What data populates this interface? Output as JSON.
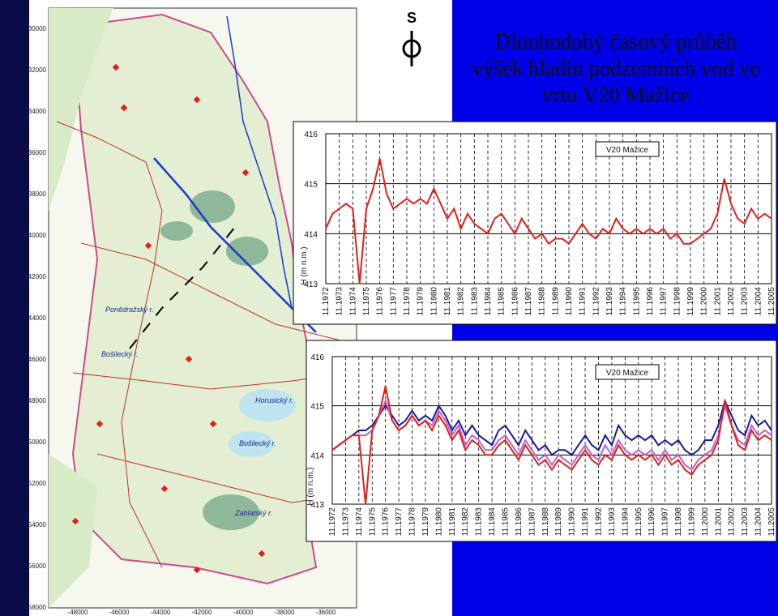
{
  "title_lines": [
    "Dlouhodobý časový průběh",
    "výšek hladin podzemních vod ve",
    "vrtu V20 Mažice"
  ],
  "compass": "S",
  "map": {
    "y_labels": [
      "-30000",
      "-32000",
      "-34000",
      "-36000",
      "-38000",
      "-40000",
      "-42000",
      "-44000",
      "-46000",
      "-48000",
      "-50000",
      "-52000",
      "-54000",
      "-56000",
      "-58000"
    ],
    "x_labels": [
      "-48000",
      "-46000",
      "-44000",
      "-42000",
      "-40000",
      "-38000",
      "-36000"
    ],
    "places": [
      "Horusický r.",
      "Bošilecký r.",
      "Zablatský r.",
      "Bošilecký r.",
      "Ponědražský r."
    ]
  },
  "chart_data": [
    {
      "type": "line",
      "ylabel": "H (m n.m.)",
      "legend": "upper right",
      "grid": true,
      "ylim": [
        413,
        416
      ],
      "yticks": [
        413,
        414,
        415,
        416
      ],
      "xlim": [
        1972.83,
        2005.83
      ],
      "xticks": [
        {
          "value": 1972.83,
          "label": "11.1972"
        },
        {
          "value": 1973.83,
          "label": "11.1973"
        },
        {
          "value": 1974.83,
          "label": "11.1974"
        },
        {
          "value": 1975.83,
          "label": "11.1975"
        },
        {
          "value": 1976.83,
          "label": "11.1976"
        },
        {
          "value": 1977.83,
          "label": "11.1977"
        },
        {
          "value": 1978.83,
          "label": "11.1978"
        },
        {
          "value": 1979.83,
          "label": "11.1979"
        },
        {
          "value": 1980.83,
          "label": "11.1980"
        },
        {
          "value": 1981.83,
          "label": "11.1981"
        },
        {
          "value": 1982.83,
          "label": "11.1982"
        },
        {
          "value": 1983.83,
          "label": "11.1983"
        },
        {
          "value": 1984.83,
          "label": "11.1984"
        },
        {
          "value": 1985.83,
          "label": "11.1985"
        },
        {
          "value": 1986.83,
          "label": "11.1986"
        },
        {
          "value": 1987.83,
          "label": "11.1987"
        },
        {
          "value": 1988.83,
          "label": "11.1988"
        },
        {
          "value": 1989.83,
          "label": "11.1989"
        },
        {
          "value": 1990.83,
          "label": "11.1990"
        },
        {
          "value": 1991.83,
          "label": "11.1991"
        },
        {
          "value": 1992.83,
          "label": "11.1992"
        },
        {
          "value": 1993.83,
          "label": "11.1993"
        },
        {
          "value": 1994.83,
          "label": "11.1994"
        },
        {
          "value": 1995.83,
          "label": "11.1995"
        },
        {
          "value": 1996.83,
          "label": "11.1996"
        },
        {
          "value": 1997.83,
          "label": "11.1997"
        },
        {
          "value": 1998.83,
          "label": "11.1998"
        },
        {
          "value": 1999.83,
          "label": "11.1999"
        },
        {
          "value": 2000.83,
          "label": "11.2000"
        },
        {
          "value": 2001.83,
          "label": "11.2001"
        },
        {
          "value": 2002.83,
          "label": "11.2002"
        },
        {
          "value": 2003.83,
          "label": "11.2003"
        },
        {
          "value": 2004.83,
          "label": "11.2004"
        },
        {
          "value": 2005.83,
          "label": "11.2005"
        }
      ],
      "x": [
        1972.83,
        1973.33,
        1973.83,
        1974.33,
        1974.83,
        1975.33,
        1975.83,
        1976.33,
        1976.83,
        1977.33,
        1977.83,
        1978.33,
        1978.83,
        1979.33,
        1979.83,
        1980.33,
        1980.83,
        1981.33,
        1981.83,
        1982.33,
        1982.83,
        1983.33,
        1983.83,
        1984.33,
        1984.83,
        1985.33,
        1985.83,
        1986.33,
        1986.83,
        1987.33,
        1987.83,
        1988.33,
        1988.83,
        1989.33,
        1989.83,
        1990.33,
        1990.83,
        1991.33,
        1991.83,
        1992.33,
        1992.83,
        1993.33,
        1993.83,
        1994.33,
        1994.83,
        1995.33,
        1995.83,
        1996.33,
        1996.83,
        1997.33,
        1997.83,
        1998.33,
        1998.83,
        1999.33,
        1999.83,
        2000.33,
        2000.83,
        2001.33,
        2001.83,
        2002.33,
        2002.83,
        2003.33,
        2003.83,
        2004.33,
        2004.83,
        2005.33,
        2005.83
      ],
      "series": [
        {
          "name": "V20 Mažice",
          "color": "#e0201b",
          "values": [
            414.1,
            414.4,
            414.5,
            414.6,
            414.5,
            413.0,
            414.5,
            414.9,
            415.5,
            414.8,
            414.5,
            414.6,
            414.7,
            414.6,
            414.7,
            414.6,
            414.9,
            414.6,
            414.3,
            414.5,
            414.1,
            414.4,
            414.2,
            414.1,
            414.0,
            414.3,
            414.4,
            414.2,
            414.0,
            414.3,
            414.1,
            413.9,
            414.0,
            413.8,
            413.9,
            413.9,
            413.8,
            414.0,
            414.2,
            414.0,
            413.9,
            414.1,
            414.0,
            414.3,
            414.1,
            414.0,
            414.1,
            414.0,
            414.1,
            414.0,
            414.1,
            413.9,
            414.0,
            413.8,
            413.8,
            413.9,
            414.0,
            414.1,
            414.4,
            415.1,
            414.6,
            414.3,
            414.2,
            414.5,
            414.3,
            414.4,
            414.3
          ]
        }
      ]
    },
    {
      "type": "line",
      "ylabel": "H (m n.m.)",
      "legend": "upper right",
      "grid": true,
      "ylim": [
        413,
        416
      ],
      "yticks": [
        413,
        414,
        415,
        416
      ],
      "xlim": [
        1972.83,
        2005.83
      ],
      "xticks": [
        {
          "value": 1972.83,
          "label": "11.1972"
        },
        {
          "value": 1973.83,
          "label": "11.1973"
        },
        {
          "value": 1974.83,
          "label": "11.1974"
        },
        {
          "value": 1975.83,
          "label": "11.1975"
        },
        {
          "value": 1976.83,
          "label": "11.1976"
        },
        {
          "value": 1977.83,
          "label": "11.1977"
        },
        {
          "value": 1978.83,
          "label": "11.1978"
        },
        {
          "value": 1979.83,
          "label": "11.1979"
        },
        {
          "value": 1980.83,
          "label": "11.1980"
        },
        {
          "value": 1981.83,
          "label": "11.1981"
        },
        {
          "value": 1982.83,
          "label": "11.1982"
        },
        {
          "value": 1983.83,
          "label": "11.1983"
        },
        {
          "value": 1984.83,
          "label": "11.1984"
        },
        {
          "value": 1985.83,
          "label": "11.1985"
        },
        {
          "value": 1986.83,
          "label": "11.1986"
        },
        {
          "value": 1987.83,
          "label": "11.1987"
        },
        {
          "value": 1988.83,
          "label": "11.1988"
        },
        {
          "value": 1989.83,
          "label": "11.1989"
        },
        {
          "value": 1990.83,
          "label": "11.1990"
        },
        {
          "value": 1991.83,
          "label": "11.1991"
        },
        {
          "value": 1992.83,
          "label": "11.1992"
        },
        {
          "value": 1993.83,
          "label": "11.1993"
        },
        {
          "value": 1994.83,
          "label": "11.1994"
        },
        {
          "value": 1995.83,
          "label": "11.1995"
        },
        {
          "value": 1996.83,
          "label": "11.1996"
        },
        {
          "value": 1997.83,
          "label": "11.1997"
        },
        {
          "value": 1998.83,
          "label": "11.1998"
        },
        {
          "value": 1999.83,
          "label": "11.1999"
        },
        {
          "value": 2000.83,
          "label": "11.2000"
        },
        {
          "value": 2001.83,
          "label": "11.2001"
        },
        {
          "value": 2002.83,
          "label": "11.2002"
        },
        {
          "value": 2003.83,
          "label": "11.2003"
        },
        {
          "value": 2004.83,
          "label": "11.2004"
        },
        {
          "value": 2005.83,
          "label": "11.2005"
        }
      ],
      "x": [
        1972.83,
        1973.33,
        1973.83,
        1974.33,
        1974.83,
        1975.33,
        1975.83,
        1976.33,
        1976.83,
        1977.33,
        1977.83,
        1978.33,
        1978.83,
        1979.33,
        1979.83,
        1980.33,
        1980.83,
        1981.33,
        1981.83,
        1982.33,
        1982.83,
        1983.33,
        1983.83,
        1984.33,
        1984.83,
        1985.33,
        1985.83,
        1986.33,
        1986.83,
        1987.33,
        1987.83,
        1988.33,
        1988.83,
        1989.33,
        1989.83,
        1990.33,
        1990.83,
        1991.33,
        1991.83,
        1992.33,
        1992.83,
        1993.33,
        1993.83,
        1994.33,
        1994.83,
        1995.33,
        1995.83,
        1996.33,
        1996.83,
        1997.33,
        1997.83,
        1998.33,
        1998.83,
        1999.33,
        1999.83,
        2000.33,
        2000.83,
        2001.33,
        2001.83,
        2002.33,
        2002.83,
        2003.33,
        2003.83,
        2004.33,
        2004.83,
        2005.33,
        2005.83
      ],
      "series": [
        {
          "color": "#1a1a9c",
          "values": [
            414.1,
            414.2,
            414.3,
            414.4,
            414.5,
            414.5,
            414.6,
            414.8,
            415.0,
            414.8,
            414.6,
            414.7,
            414.9,
            414.7,
            414.8,
            414.7,
            415.0,
            414.8,
            414.5,
            414.7,
            414.4,
            414.6,
            414.4,
            414.3,
            414.2,
            414.5,
            414.6,
            414.4,
            414.2,
            414.5,
            414.3,
            414.1,
            414.2,
            414.0,
            414.1,
            414.1,
            414.0,
            414.2,
            414.4,
            414.2,
            414.1,
            414.4,
            414.2,
            414.6,
            414.4,
            414.3,
            414.4,
            414.3,
            414.4,
            414.2,
            414.3,
            414.2,
            414.3,
            414.1,
            414.0,
            414.1,
            414.3,
            414.3,
            414.6,
            415.1,
            414.8,
            414.5,
            414.4,
            414.8,
            414.6,
            414.7,
            414.5
          ]
        },
        {
          "color": "#c060c8",
          "values": [
            414.1,
            414.2,
            414.3,
            414.4,
            414.4,
            414.4,
            414.5,
            414.8,
            415.1,
            414.7,
            414.5,
            414.6,
            414.8,
            414.6,
            414.7,
            414.6,
            414.9,
            414.7,
            414.4,
            414.6,
            414.2,
            414.4,
            414.3,
            414.1,
            414.1,
            414.3,
            414.4,
            414.2,
            414.0,
            414.3,
            414.1,
            413.9,
            414.0,
            413.8,
            414.0,
            413.9,
            413.8,
            414.0,
            414.2,
            414.0,
            413.9,
            414.2,
            414.0,
            414.3,
            414.1,
            414.0,
            414.1,
            414.0,
            414.1,
            413.9,
            414.1,
            413.9,
            414.0,
            413.8,
            413.7,
            413.9,
            414.0,
            414.1,
            414.4,
            415.0,
            414.6,
            414.3,
            414.2,
            414.6,
            414.4,
            414.5,
            414.4
          ]
        },
        {
          "name": "V20 Mažice",
          "color": "#e0201b",
          "values": [
            414.1,
            414.2,
            414.3,
            414.4,
            414.4,
            413.0,
            414.5,
            414.8,
            415.4,
            414.7,
            414.5,
            414.6,
            414.8,
            414.6,
            414.7,
            414.5,
            414.8,
            414.6,
            414.3,
            414.5,
            414.1,
            414.3,
            414.2,
            414.0,
            414.0,
            414.2,
            414.3,
            414.1,
            413.9,
            414.2,
            414.0,
            413.8,
            413.9,
            413.7,
            413.9,
            413.8,
            413.7,
            413.9,
            414.1,
            413.9,
            413.8,
            414.0,
            413.9,
            414.2,
            414.0,
            413.9,
            414.0,
            413.9,
            414.0,
            413.8,
            414.0,
            413.8,
            413.9,
            413.7,
            413.6,
            413.8,
            413.9,
            414.0,
            414.3,
            415.1,
            414.6,
            414.2,
            414.1,
            414.5,
            414.3,
            414.4,
            414.3
          ]
        }
      ]
    }
  ]
}
